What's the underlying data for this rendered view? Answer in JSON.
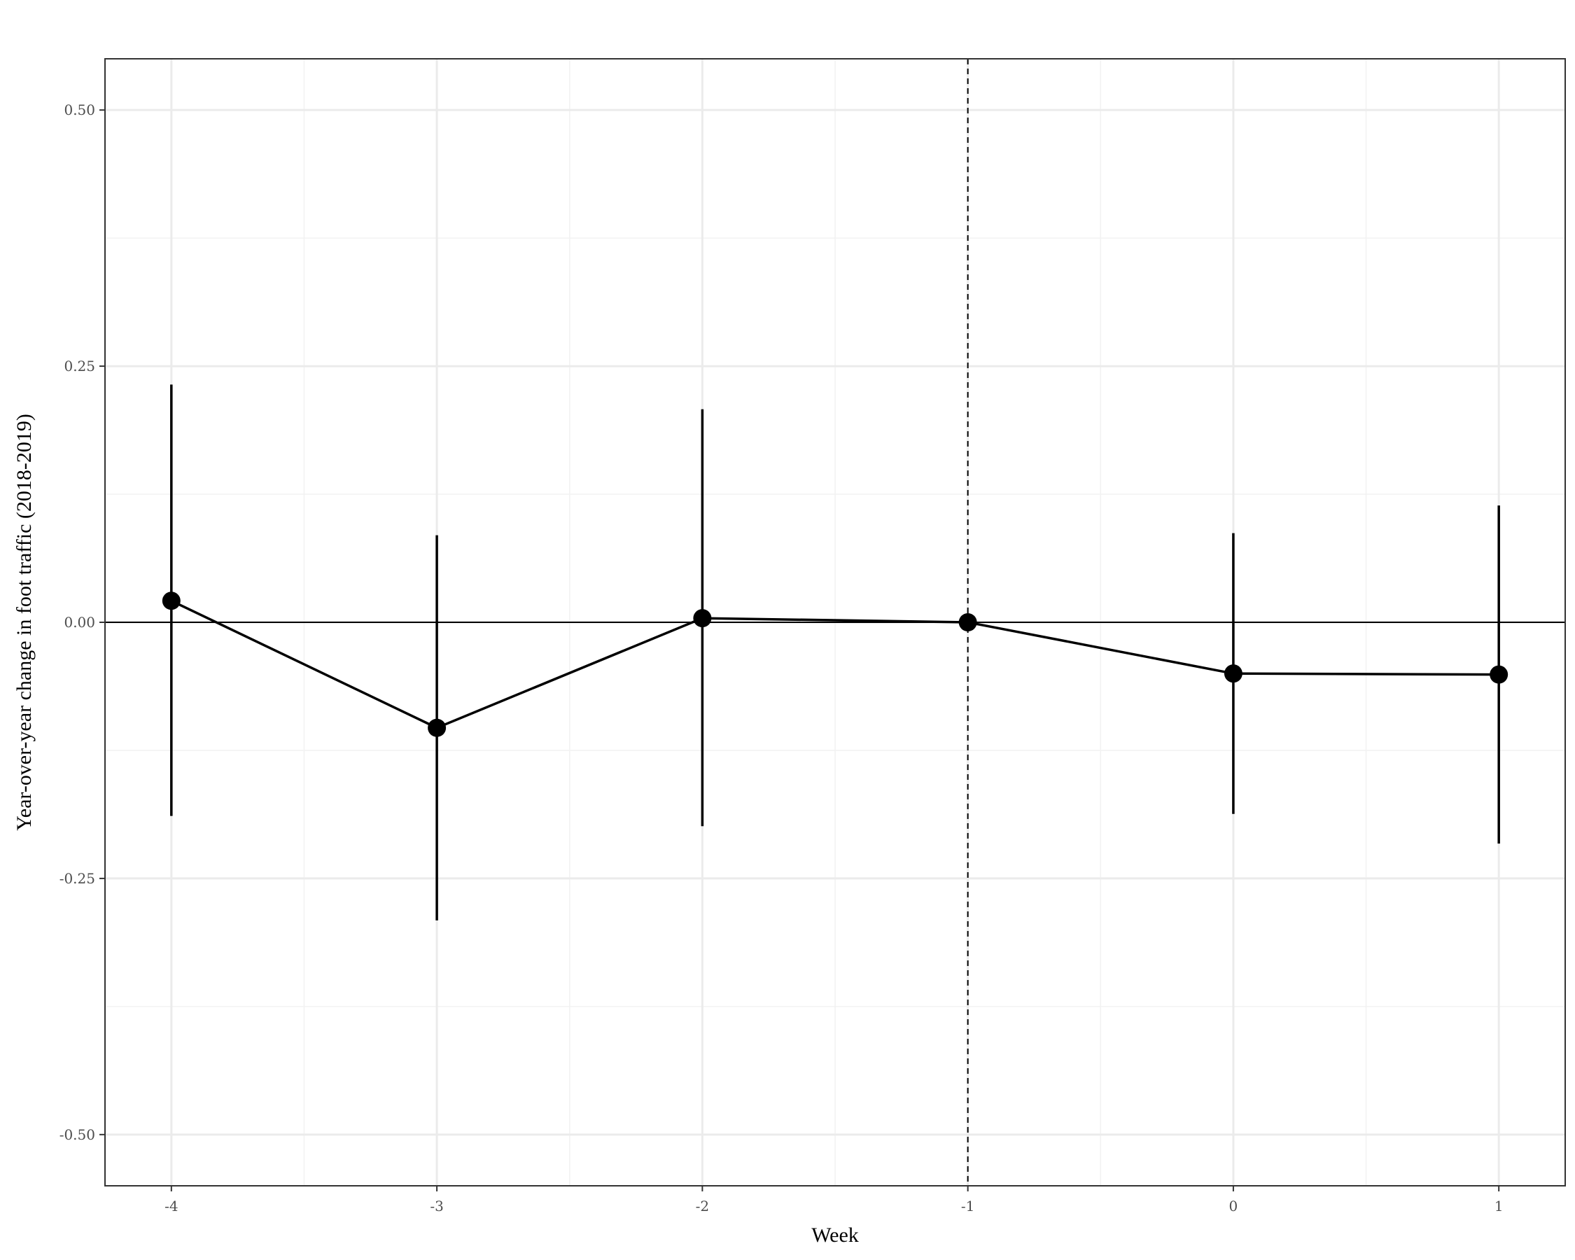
{
  "chart_data": {
    "type": "line",
    "title": "",
    "xlabel": "Week",
    "ylabel": "Year-over-year change in foot traffic (2018-2019)",
    "xlim": [
      -4.25,
      1.25
    ],
    "ylim": [
      -0.55,
      0.55
    ],
    "x_ticks": [
      -4,
      -3,
      -2,
      -1,
      0,
      1
    ],
    "x_tick_labels": [
      "-4",
      "-3",
      "-2",
      "-1",
      "0",
      "1"
    ],
    "y_ticks": [
      -0.5,
      -0.25,
      0.0,
      0.25,
      0.5
    ],
    "y_tick_labels": [
      "-0.50",
      "-0.25",
      "0.00",
      "0.25",
      "0.50"
    ],
    "grid": true,
    "legend": "none",
    "reference_lines": {
      "horizontal_y": 0.0,
      "vertical_dashed_x": -1
    },
    "series": [
      {
        "x": [
          -4,
          -3,
          -2,
          -1,
          0,
          1
        ],
        "y": [
          0.021,
          -0.103,
          0.004,
          0.0,
          -0.05,
          -0.051
        ],
        "lower": [
          -0.189,
          -0.291,
          -0.199,
          0.0,
          -0.187,
          -0.216
        ],
        "upper": [
          0.232,
          0.085,
          0.208,
          0.0,
          0.087,
          0.114
        ]
      }
    ],
    "colors": {
      "line": "#000000",
      "grid_major": "#ebebeb",
      "grid_minor": "#f2f2f2",
      "panel_border": "#333333"
    }
  }
}
